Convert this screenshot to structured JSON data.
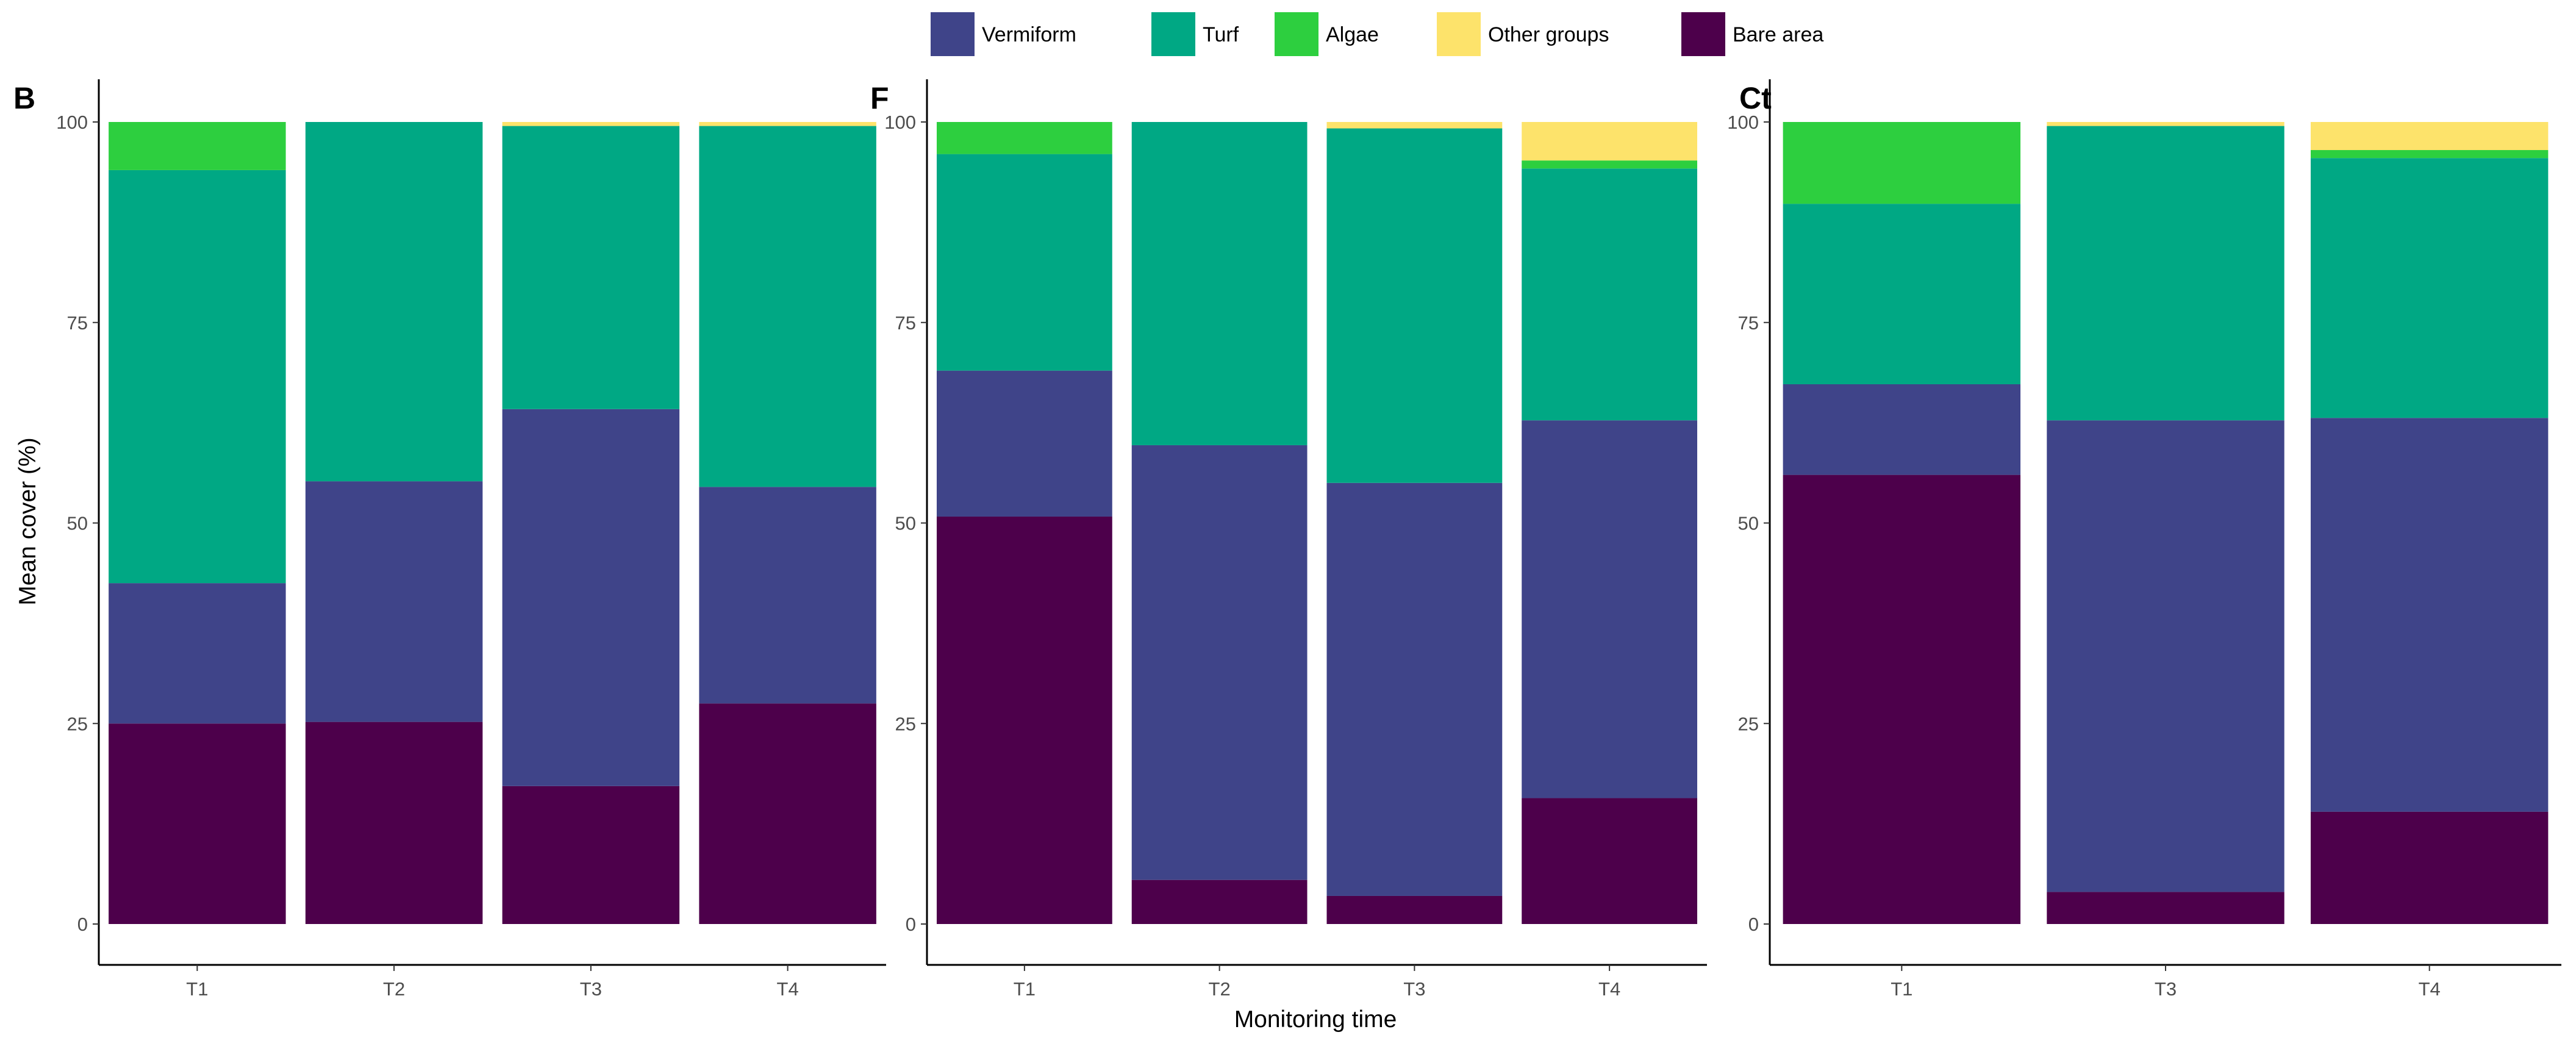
{
  "colors": {
    "Vermiform": "#3f4489",
    "Turf": "#00a884",
    "Algae": "#2dcf3f",
    "Other groups": "#fde36b",
    "Bare area": "#4d004b"
  },
  "legend": {
    "items": [
      {
        "label": "Vermiform",
        "color": "#3f4489"
      },
      {
        "label": "Turf",
        "color": "#00a884"
      },
      {
        "label": "Algae",
        "color": "#2dcf3f"
      },
      {
        "label": "Other groups",
        "color": "#fde36b"
      },
      {
        "label": "Bare area",
        "color": "#4d004b"
      }
    ]
  },
  "axes": {
    "ylabel": "Mean cover (%)",
    "xlabel": "Monitoring time",
    "yticks": [
      0,
      25,
      50,
      75,
      100
    ]
  },
  "chart_data": [
    {
      "type": "bar",
      "stacked": true,
      "panel": "B",
      "categories": [
        "T1",
        "T2",
        "T3",
        "T4"
      ],
      "ylim": [
        0,
        100
      ],
      "series": [
        {
          "name": "Bare area",
          "values": [
            25.0,
            25.2,
            17.2,
            27.5
          ]
        },
        {
          "name": "Vermiform",
          "values": [
            17.5,
            30.0,
            47.0,
            27.0
          ]
        },
        {
          "name": "Turf",
          "values": [
            51.5,
            44.8,
            35.3,
            45.0
          ]
        },
        {
          "name": "Algae",
          "values": [
            6.0,
            0.0,
            0.0,
            0.0
          ]
        },
        {
          "name": "Other groups",
          "values": [
            0.0,
            0.0,
            0.5,
            0.5
          ]
        }
      ]
    },
    {
      "type": "bar",
      "stacked": true,
      "panel": "F",
      "categories": [
        "T1",
        "T2",
        "T3",
        "T4"
      ],
      "ylim": [
        0,
        100
      ],
      "series": [
        {
          "name": "Bare area",
          "values": [
            50.8,
            5.5,
            3.5,
            15.7
          ]
        },
        {
          "name": "Vermiform",
          "values": [
            18.2,
            54.2,
            51.5,
            47.1
          ]
        },
        {
          "name": "Turf",
          "values": [
            27.0,
            40.3,
            44.2,
            31.4
          ]
        },
        {
          "name": "Algae",
          "values": [
            4.0,
            0.0,
            0.0,
            1.0
          ]
        },
        {
          "name": "Other groups",
          "values": [
            0.0,
            0.0,
            0.8,
            4.8
          ]
        }
      ]
    },
    {
      "type": "bar",
      "stacked": true,
      "panel": "Ct",
      "categories": [
        "T1",
        "T3",
        "T4"
      ],
      "ylim": [
        0,
        100
      ],
      "series": [
        {
          "name": "Bare area",
          "values": [
            56.0,
            4.0,
            14.0
          ]
        },
        {
          "name": "Vermiform",
          "values": [
            11.3,
            58.8,
            49.1
          ]
        },
        {
          "name": "Turf",
          "values": [
            22.5,
            36.7,
            32.4
          ]
        },
        {
          "name": "Algae",
          "values": [
            10.2,
            0.0,
            1.0
          ]
        },
        {
          "name": "Other groups",
          "values": [
            0.0,
            0.5,
            3.5
          ]
        }
      ]
    }
  ]
}
